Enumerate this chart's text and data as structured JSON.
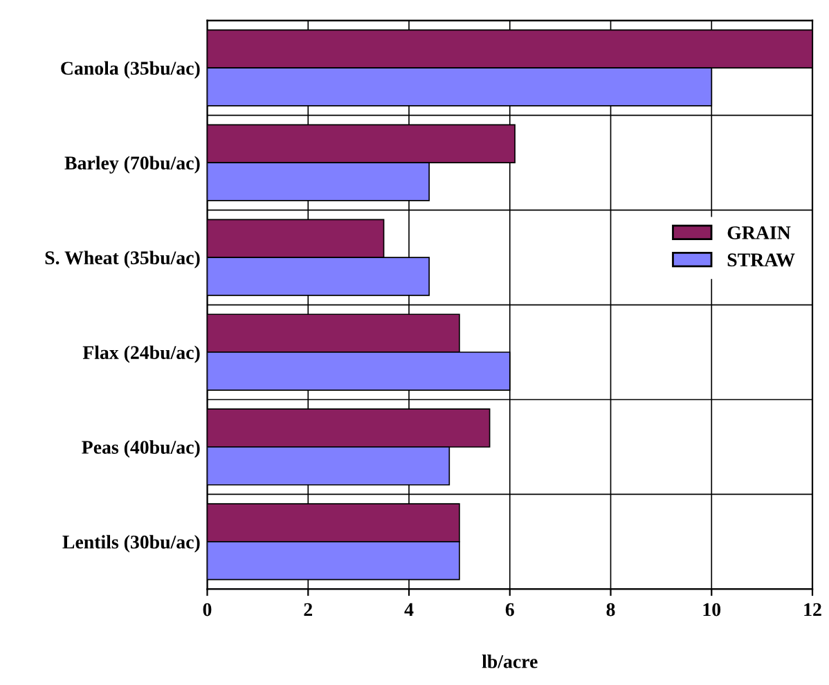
{
  "chart_data": {
    "type": "bar",
    "orientation": "horizontal",
    "xlabel": "lb/acre",
    "categories": [
      "Canola (35bu/ac)",
      "Barley (70bu/ac)",
      "S. Wheat (35bu/ac)",
      "Flax (24bu/ac)",
      "Peas (40bu/ac)",
      "Lentils (30bu/ac)"
    ],
    "series": [
      {
        "name": "GRAIN",
        "color": "#8b1f5f",
        "values": [
          12.0,
          6.1,
          3.5,
          5.0,
          5.6,
          5.0
        ]
      },
      {
        "name": "STRAW",
        "color": "#8080ff",
        "values": [
          10.0,
          4.4,
          4.4,
          6.0,
          4.8,
          5.0
        ]
      }
    ],
    "xlim": [
      0,
      12
    ],
    "xticks": [
      0,
      2,
      4,
      6,
      8,
      10,
      12
    ],
    "grid": true,
    "legend": "right"
  }
}
